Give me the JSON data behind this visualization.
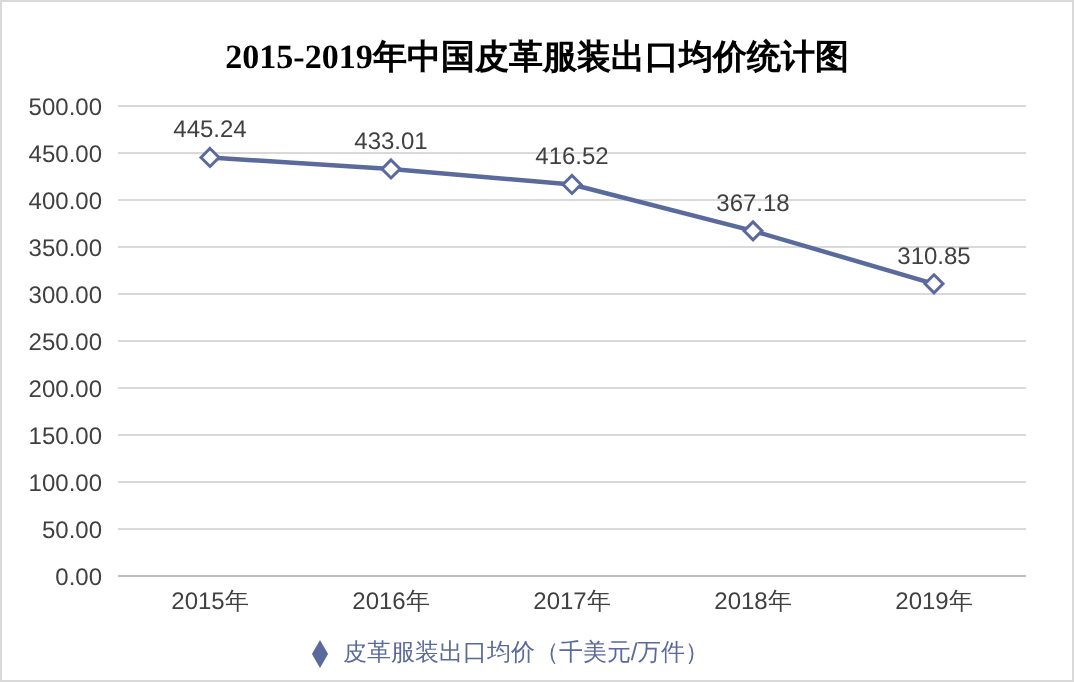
{
  "chart_data": {
    "type": "line",
    "title": "2015-2019年中国皮革服装出口均价统计图",
    "categories": [
      "2015年",
      "2016年",
      "2017年",
      "2018年",
      "2019年"
    ],
    "series": [
      {
        "name": "皮革服装出口均价（千美元/万件）",
        "color": "#5b6a9c",
        "values": [
          445.24,
          433.01,
          416.52,
          367.18,
          310.85
        ]
      }
    ],
    "ylim": [
      0,
      500
    ],
    "yticks": [
      {
        "value": 0,
        "label": "0.00"
      },
      {
        "value": 50,
        "label": "50.00"
      },
      {
        "value": 100,
        "label": "100.00"
      },
      {
        "value": 150,
        "label": "150.00"
      },
      {
        "value": 200,
        "label": "200.00"
      },
      {
        "value": 250,
        "label": "250.00"
      },
      {
        "value": 300,
        "label": "300.00"
      },
      {
        "value": 350,
        "label": "350.00"
      },
      {
        "value": 400,
        "label": "400.00"
      },
      {
        "value": 450,
        "label": "450.00"
      },
      {
        "value": 500,
        "label": "500.00"
      }
    ],
    "grid": "y",
    "legend": "bottom",
    "marker": "diamond",
    "line_style": "solid",
    "data_labels": true
  }
}
